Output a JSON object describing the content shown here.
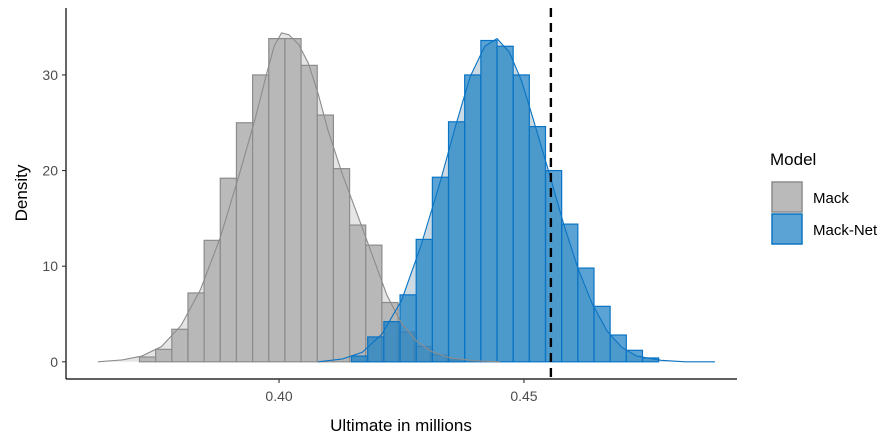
{
  "chart_data": {
    "type": "histogram",
    "xlabel": "Ultimate in millions",
    "ylabel": "Density",
    "xlim": [
      0.3565,
      0.4935
    ],
    "ylim": [
      -1.8,
      37.0
    ],
    "x_ticks": [
      {
        "value": 0.4,
        "label": "0.40"
      },
      {
        "value": 0.45,
        "label": "0.45"
      }
    ],
    "y_ticks": [
      {
        "value": 0,
        "label": "0"
      },
      {
        "value": 10,
        "label": "10"
      },
      {
        "value": 20,
        "label": "20"
      },
      {
        "value": 30,
        "label": "30"
      }
    ],
    "grid": false,
    "legend": {
      "title": "Model",
      "placement": "right",
      "entries": [
        {
          "label": "Mack",
          "series": 0
        },
        {
          "label": "Mack-Net",
          "series": 1
        }
      ]
    },
    "reference_line": {
      "x": 0.4555,
      "style": "dashed",
      "color": "#000000"
    },
    "bin_width": 0.0033,
    "series": [
      {
        "name": "Mack",
        "fill_color": "#b3b3b3",
        "fill_opacity": 0.9,
        "border_color": "#8c8c8c",
        "density_color": "#8c8c8c",
        "density_fill": "#bfbfbf",
        "bins": [
          {
            "x0": 0.3715,
            "height": 0.5
          },
          {
            "x0": 0.3748,
            "height": 1.3
          },
          {
            "x0": 0.3781,
            "height": 3.4
          },
          {
            "x0": 0.3814,
            "height": 7.2
          },
          {
            "x0": 0.3847,
            "height": 12.7
          },
          {
            "x0": 0.388,
            "height": 19.2
          },
          {
            "x0": 0.3913,
            "height": 25.0
          },
          {
            "x0": 0.3946,
            "height": 30.0
          },
          {
            "x0": 0.3979,
            "height": 33.8
          },
          {
            "x0": 0.4012,
            "height": 33.8
          },
          {
            "x0": 0.4045,
            "height": 31.0
          },
          {
            "x0": 0.4078,
            "height": 25.8
          },
          {
            "x0": 0.4111,
            "height": 20.2
          },
          {
            "x0": 0.4144,
            "height": 14.3
          },
          {
            "x0": 0.4177,
            "height": 12.2
          },
          {
            "x0": 0.421,
            "height": 6.2
          },
          {
            "x0": 0.4243,
            "height": 3.1
          },
          {
            "x0": 0.4276,
            "height": 1.6
          },
          {
            "x0": 0.4309,
            "height": 0.7
          },
          {
            "x0": 0.4342,
            "height": 0.2
          }
        ],
        "density": [
          [
            0.363,
            0.0
          ],
          [
            0.368,
            0.2
          ],
          [
            0.372,
            0.6
          ],
          [
            0.376,
            1.6
          ],
          [
            0.38,
            3.8
          ],
          [
            0.384,
            7.6
          ],
          [
            0.388,
            13.0
          ],
          [
            0.392,
            19.8
          ],
          [
            0.395,
            25.2
          ],
          [
            0.3975,
            30.2
          ],
          [
            0.399,
            33.0
          ],
          [
            0.4005,
            34.4
          ],
          [
            0.402,
            34.2
          ],
          [
            0.404,
            33.2
          ],
          [
            0.406,
            31.2
          ],
          [
            0.408,
            28.0
          ],
          [
            0.41,
            24.2
          ],
          [
            0.413,
            19.5
          ],
          [
            0.416,
            15.4
          ],
          [
            0.419,
            11.2
          ],
          [
            0.422,
            7.0
          ],
          [
            0.425,
            4.0
          ],
          [
            0.428,
            2.2
          ],
          [
            0.431,
            1.1
          ],
          [
            0.435,
            0.4
          ],
          [
            0.44,
            0.1
          ],
          [
            0.445,
            0.0
          ]
        ]
      },
      {
        "name": "Mack-Net",
        "fill_color": "#1a7fc4",
        "fill_opacity": 0.72,
        "border_color": "#0a74c4",
        "density_color": "#0a74c4",
        "density_fill": "#7fa3b8",
        "bins": [
          {
            "x0": 0.4148,
            "height": 0.6
          },
          {
            "x0": 0.4181,
            "height": 2.6
          },
          {
            "x0": 0.4214,
            "height": 4.2
          },
          {
            "x0": 0.4247,
            "height": 7.0
          },
          {
            "x0": 0.428,
            "height": 12.8
          },
          {
            "x0": 0.4313,
            "height": 19.3
          },
          {
            "x0": 0.4346,
            "height": 25.1
          },
          {
            "x0": 0.4379,
            "height": 30.0
          },
          {
            "x0": 0.4412,
            "height": 33.6
          },
          {
            "x0": 0.4445,
            "height": 33.0
          },
          {
            "x0": 0.4478,
            "height": 30.0
          },
          {
            "x0": 0.4511,
            "height": 24.6
          },
          {
            "x0": 0.4544,
            "height": 20.0
          },
          {
            "x0": 0.4577,
            "height": 14.4
          },
          {
            "x0": 0.461,
            "height": 9.8
          },
          {
            "x0": 0.4643,
            "height": 5.8
          },
          {
            "x0": 0.4676,
            "height": 2.8
          },
          {
            "x0": 0.4709,
            "height": 1.2
          },
          {
            "x0": 0.4742,
            "height": 0.4
          }
        ],
        "density": [
          [
            0.408,
            0.0
          ],
          [
            0.413,
            0.3
          ],
          [
            0.417,
            1.0
          ],
          [
            0.421,
            2.9
          ],
          [
            0.425,
            6.4
          ],
          [
            0.429,
            12.2
          ],
          [
            0.433,
            19.0
          ],
          [
            0.436,
            24.6
          ],
          [
            0.439,
            29.8
          ],
          [
            0.442,
            33.0
          ],
          [
            0.4445,
            33.8
          ],
          [
            0.447,
            32.4
          ],
          [
            0.4495,
            29.4
          ],
          [
            0.452,
            25.2
          ],
          [
            0.455,
            20.0
          ],
          [
            0.458,
            14.6
          ],
          [
            0.461,
            9.8
          ],
          [
            0.464,
            6.0
          ],
          [
            0.467,
            3.2
          ],
          [
            0.47,
            1.5
          ],
          [
            0.473,
            0.6
          ],
          [
            0.478,
            0.15
          ],
          [
            0.483,
            0.0
          ],
          [
            0.489,
            0.0
          ]
        ]
      }
    ]
  }
}
